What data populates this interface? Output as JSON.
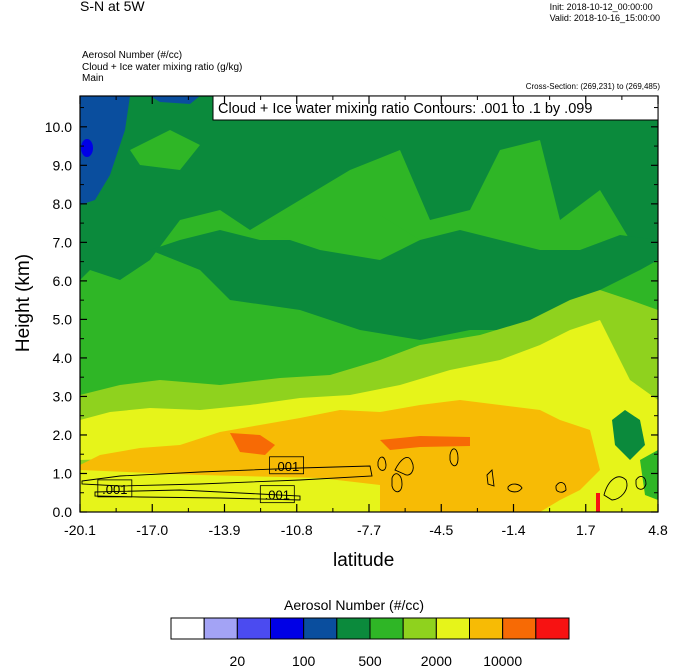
{
  "header": {
    "title": "S-N at 5W",
    "field_1": "Aerosol Number   (#/cc)",
    "field_2": "Cloud + Ice water mixing ratio   (g/kg)",
    "field_3": "Main",
    "init": "Init: 2018-10-12_00:00:00",
    "valid": "Valid: 2018-10-16_15:00:00",
    "cross_section": "Cross-Section: (269,231) to (269,485)"
  },
  "colors": {
    "levels": [
      "#ffffff",
      "#a3a3f5",
      "#4b4bf0",
      "#0000e6",
      "#0a4e9e",
      "#0b8a3c",
      "#2fb626",
      "#8fd21e",
      "#e6f41a",
      "#f7bb05",
      "#f76a05",
      "#f71212"
    ]
  },
  "chart_data": {
    "type": "heatmap",
    "title": "Cloud + Ice water mixing ratio Contours: .001 to .1 by .099",
    "xlabel": "latitude",
    "ylabel": "Height (km)",
    "x_ticks": [
      "-20.1",
      "-17.0",
      "-13.9",
      "-10.8",
      "-7.7",
      "-4.5",
      "-1.4",
      "1.7",
      "4.8"
    ],
    "y_ticks": [
      "0.0",
      "1.0",
      "2.0",
      "3.0",
      "4.0",
      "5.0",
      "6.0",
      "7.0",
      "8.0",
      "9.0",
      "10.0"
    ],
    "xlim": [
      -20.1,
      4.8
    ],
    "ylim": [
      0,
      10.8
    ],
    "contour_labels": [
      {
        "text": ".001",
        "x": -11.2,
        "y": 1.2
      },
      {
        "text": ".001",
        "x": -18.6,
        "y": 0.6
      },
      {
        "text": ".001",
        "x": -11.6,
        "y": 0.45
      }
    ],
    "colorbar": {
      "title": "Aerosol Number  (#/cc)",
      "labels": [
        "20",
        "100",
        "500",
        "2000",
        "10000"
      ]
    }
  }
}
